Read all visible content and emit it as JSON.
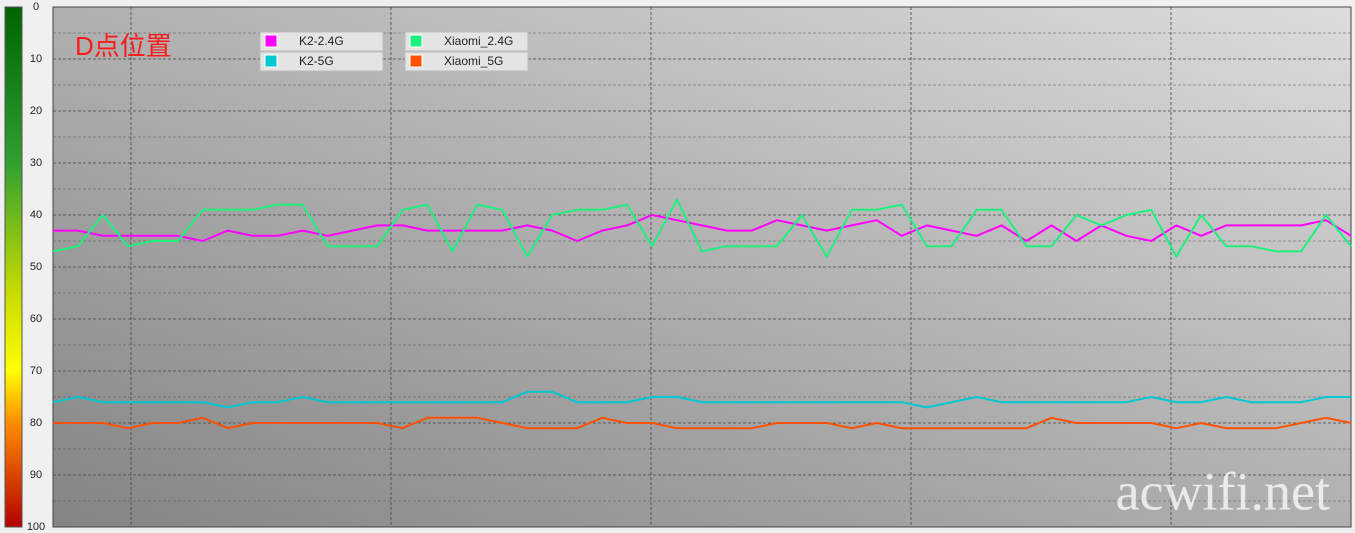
{
  "chart_data": {
    "type": "line",
    "title": "D点位置",
    "watermark": "acwifi.net",
    "ylim": [
      0,
      100
    ],
    "yticks": [
      0,
      10,
      20,
      30,
      40,
      50,
      60,
      70,
      80,
      90,
      100
    ],
    "minor_yticks": [
      5,
      15,
      25,
      35,
      45,
      55,
      65,
      75,
      85,
      95
    ],
    "y_inverted": true,
    "grid": true,
    "series": [
      {
        "name": "K2-2.4G",
        "color": "#ff00ff",
        "values": [
          43,
          43,
          44,
          44,
          44,
          44,
          45,
          43,
          44,
          44,
          43,
          44,
          43,
          42,
          42,
          43,
          43,
          43,
          43,
          42,
          43,
          45,
          43,
          42,
          40,
          41,
          42,
          43,
          43,
          41,
          42,
          43,
          42,
          41,
          44,
          42,
          43,
          44,
          42,
          45,
          42,
          45,
          42,
          44,
          45,
          42,
          44,
          42,
          42,
          42,
          42,
          41,
          44
        ]
      },
      {
        "name": "K2-5G",
        "color": "#00c8d2",
        "values": [
          76,
          75,
          76,
          76,
          76,
          76,
          76,
          77,
          76,
          76,
          75,
          76,
          76,
          76,
          76,
          76,
          76,
          76,
          76,
          74,
          74,
          76,
          76,
          76,
          75,
          75,
          76,
          76,
          76,
          76,
          76,
          76,
          76,
          76,
          76,
          77,
          76,
          75,
          76,
          76,
          76,
          76,
          76,
          76,
          75,
          76,
          76,
          75,
          76,
          76,
          76,
          75,
          75
        ]
      },
      {
        "name": "Xiaomi_2.4G",
        "color": "#1ef07e",
        "values": [
          47,
          46,
          40,
          46,
          45,
          45,
          39,
          39,
          39,
          38,
          38,
          46,
          46,
          46,
          39,
          38,
          47,
          38,
          39,
          48,
          40,
          39,
          39,
          38,
          46,
          37,
          47,
          46,
          46,
          46,
          40,
          48,
          39,
          39,
          38,
          46,
          46,
          39,
          39,
          46,
          46,
          40,
          42,
          40,
          39,
          48,
          40,
          46,
          46,
          47,
          47,
          40,
          46
        ]
      },
      {
        "name": "Xiaomi_5G",
        "color": "#ff5000",
        "values": [
          80,
          80,
          80,
          81,
          80,
          80,
          79,
          81,
          80,
          80,
          80,
          80,
          80,
          80,
          81,
          79,
          79,
          79,
          80,
          81,
          81,
          81,
          79,
          80,
          80,
          81,
          81,
          81,
          81,
          80,
          80,
          80,
          81,
          80,
          81,
          81,
          81,
          81,
          81,
          81,
          79,
          80,
          80,
          80,
          80,
          81,
          80,
          81,
          81,
          81,
          80,
          79,
          80
        ]
      }
    ]
  }
}
